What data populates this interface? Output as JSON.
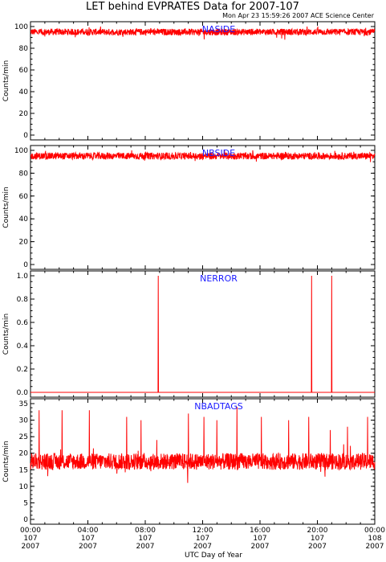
{
  "title": "LET behind EVPRATES Data for 2007-107",
  "subtitle": "Mon Apr 23 15:59:26 2007 ACE Science Center",
  "xlabel": "UTC Day of Year",
  "colors": {
    "series": "#ff0000",
    "panel_label": "#1a1aff",
    "axes": "#000000"
  },
  "x_ticks": [
    {
      "time": "00:00",
      "day": "107",
      "year": "2007"
    },
    {
      "time": "04:00",
      "day": "107",
      "year": "2007"
    },
    {
      "time": "08:00",
      "day": "107",
      "year": "2007"
    },
    {
      "time": "12:00",
      "day": "107",
      "year": "2007"
    },
    {
      "time": "16:00",
      "day": "107",
      "year": "2007"
    },
    {
      "time": "20:00",
      "day": "107",
      "year": "2007"
    },
    {
      "time": "00:00",
      "day": "108",
      "year": "2007"
    }
  ],
  "chart_data": [
    {
      "type": "line",
      "panel_label": "NASIDE",
      "ylabel": "Counts/min",
      "ylim": [
        0,
        100
      ],
      "yticks": [
        "0",
        "20",
        "40",
        "60",
        "80",
        "100"
      ],
      "xlim_hours": [
        0,
        24
      ],
      "series": [
        {
          "pattern": "noise",
          "baseline": 95,
          "noise": 3,
          "spikes": [],
          "samples": 1440
        }
      ]
    },
    {
      "type": "line",
      "panel_label": "NBSIDE",
      "ylabel": "Counts/min",
      "ylim": [
        0,
        100
      ],
      "yticks": [
        "0",
        "20",
        "40",
        "60",
        "80",
        "100"
      ],
      "xlim_hours": [
        0,
        24
      ],
      "series": [
        {
          "pattern": "noise",
          "baseline": 95,
          "noise": 3,
          "spikes": [],
          "samples": 1440
        }
      ]
    },
    {
      "type": "line",
      "panel_label": "NERROR",
      "ylabel": "Counts/min",
      "ylim": [
        0,
        1.0
      ],
      "yticks": [
        "0.0",
        "0.2",
        "0.4",
        "0.6",
        "0.8",
        "1.0"
      ],
      "xlim_hours": [
        0,
        24
      ],
      "series": [
        {
          "pattern": "spikes",
          "baseline": 0,
          "noise": 0,
          "spikes": [
            [
              8.9,
              1.0
            ],
            [
              19.6,
              1.0
            ],
            [
              21.0,
              1.0
            ]
          ],
          "samples": 1440
        }
      ]
    },
    {
      "type": "line",
      "panel_label": "NBADTAGS",
      "ylabel": "Counts/min",
      "ylim": [
        0,
        35
      ],
      "yticks": [
        "0",
        "5",
        "10",
        "15",
        "20",
        "25",
        "30",
        "35"
      ],
      "xlim_hours": [
        0,
        24
      ],
      "series": [
        {
          "pattern": "noise",
          "baseline": 17.5,
          "noise": 2.5,
          "spikes": [
            [
              0.6,
              33
            ],
            [
              2.2,
              33
            ],
            [
              4.1,
              33
            ],
            [
              6.7,
              31
            ],
            [
              7.7,
              30
            ],
            [
              8.8,
              24
            ],
            [
              11.0,
              32
            ],
            [
              12.1,
              31
            ],
            [
              13.0,
              30
            ],
            [
              14.4,
              34
            ],
            [
              16.1,
              31
            ],
            [
              18.0,
              30
            ],
            [
              19.4,
              31
            ],
            [
              20.9,
              27
            ],
            [
              22.1,
              28
            ],
            [
              23.5,
              31
            ]
          ],
          "samples": 1440
        }
      ]
    }
  ]
}
